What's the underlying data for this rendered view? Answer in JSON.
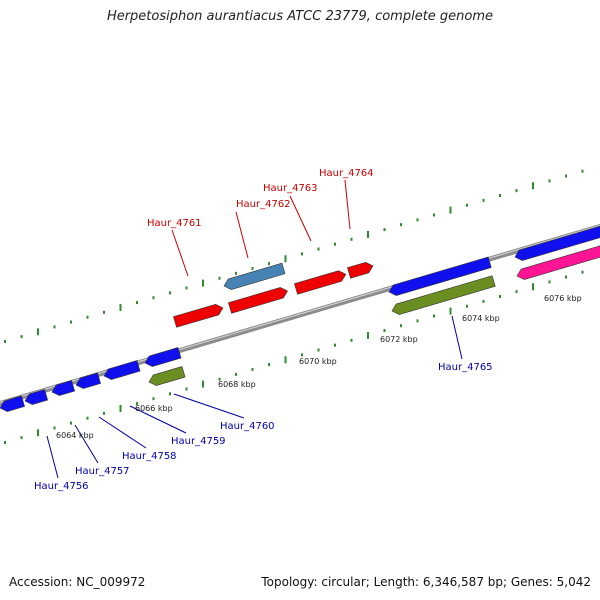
{
  "title": "Herpetosiphon aurantiacus ATCC 23779, complete genome",
  "footer": {
    "accession": "Accession: NC_009972",
    "topology": "Topology: circular; Length: 6,346,587 bp; Genes: 5,042"
  },
  "colors": {
    "backbone": "#8a8a8a",
    "tick": "#2e8b2e",
    "forward_label": "#cc0000",
    "reverse_label": "#0000aa",
    "red_gene": "#ee0000",
    "blue_gene": "#1010ee",
    "steel_gene": "#4682b4",
    "olive_gene": "#6b8e23",
    "pink_gene": "#ff1493"
  },
  "tick_labels": [
    "6064 kbp",
    "6066 kbp",
    "6068 kbp",
    "6070 kbp",
    "6072 kbp",
    "6074 kbp",
    "6076 kbp"
  ],
  "forward_labels": [
    "Haur_4761",
    "Haur_4762",
    "Haur_4763",
    "Haur_4764"
  ],
  "reverse_labels": [
    "Haur_4756",
    "Haur_4757",
    "Haur_4758",
    "Haur_4759",
    "Haur_4760",
    "Haur_4765"
  ]
}
